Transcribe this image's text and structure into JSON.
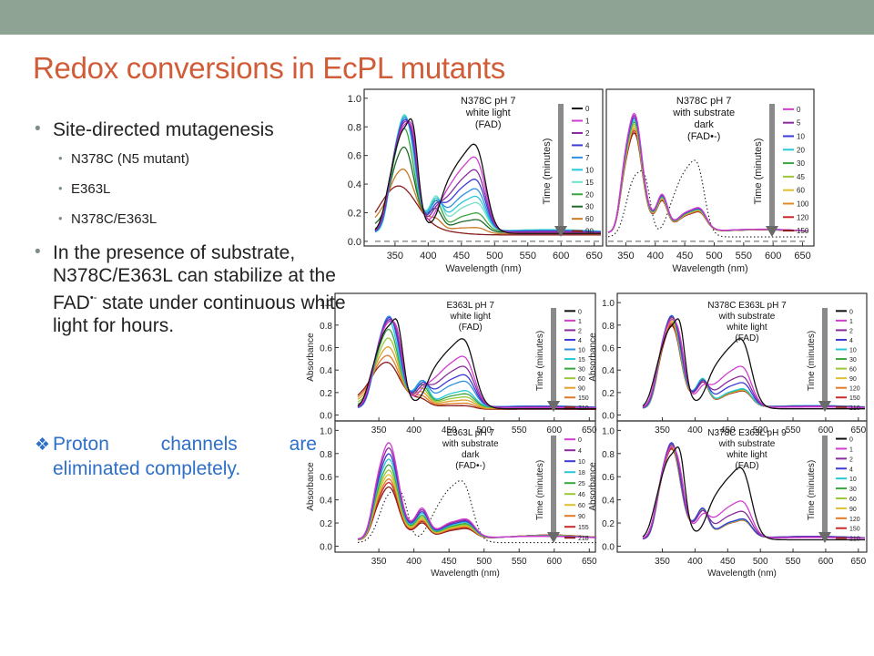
{
  "slide": {
    "title": "Redox conversions in EcPL mutants",
    "bullets": [
      {
        "text": "Site-directed mutagenesis"
      },
      {
        "text": "N378C (N5 mutant)"
      },
      {
        "text": "E363L"
      },
      {
        "text": "N378C/E363L"
      },
      {
        "text_before": "In the presence of substrate, N378C/E363L can stabilize at the FAD",
        "superscript": "•-",
        "text_after": " state under continuous white light for hours."
      }
    ],
    "highlight": {
      "line1": "Proton channels are",
      "line2": "eliminated completely."
    },
    "colors": {
      "title": "#d05c38",
      "highlight": "#2e6fc8",
      "topbar": "#8fa394"
    }
  },
  "chart_data": [
    {
      "type": "line",
      "title_lines": [
        "N378C pH 7",
        "white light",
        "(FAD)"
      ],
      "xlabel": "Wavelength (nm)",
      "ylabel": "",
      "xlim": [
        320,
        660
      ],
      "ylim": [
        -0.02,
        1.05
      ],
      "xticks": [
        350,
        400,
        450,
        500,
        550,
        600,
        650
      ],
      "yticks": [
        0.0,
        0.2,
        0.4,
        0.6,
        0.8,
        1.0
      ],
      "legend_title": "Time (minutes)",
      "legend": [
        "0",
        "1",
        "2",
        "4",
        "7",
        "10",
        "15",
        "20",
        "30",
        "60",
        "90"
      ],
      "colors": [
        "#111111",
        "#d03ed0",
        "#8a2c9e",
        "#3b3bd6",
        "#2f8fe0",
        "#28c8d8",
        "#6ee0c8",
        "#3aa640",
        "#1e6a2a",
        "#c87a28",
        "#8a1c1c"
      ],
      "series": [
        {
          "name": "0",
          "kind": "fad",
          "k": 0
        },
        {
          "name": "1",
          "kind": "toward_sq",
          "k": 0.2
        },
        {
          "name": "2",
          "kind": "toward_sq",
          "k": 0.4
        },
        {
          "name": "4",
          "kind": "toward_sq",
          "k": 0.55
        },
        {
          "name": "7",
          "kind": "toward_sq",
          "k": 0.7
        },
        {
          "name": "10",
          "kind": "toward_sq",
          "k": 0.82
        },
        {
          "name": "15",
          "kind": "toward_sq",
          "k": 0.92
        },
        {
          "name": "20",
          "kind": "to_hq",
          "k": 0.2
        },
        {
          "name": "30",
          "kind": "to_hq",
          "k": 0.45
        },
        {
          "name": "60",
          "kind": "to_hq",
          "k": 0.75
        },
        {
          "name": "90",
          "kind": "to_hq",
          "k": 1.0
        }
      ],
      "dashed_baseline": true,
      "dotted_ref": false
    },
    {
      "type": "line",
      "title_lines": [
        "N378C pH 7",
        "with substrate",
        "dark",
        "(FAD•-)"
      ],
      "xlabel": "Wavelength (nm)",
      "ylabel": "",
      "xlim": [
        320,
        660
      ],
      "ylim": [
        -0.02,
        1.05
      ],
      "xticks": [
        350,
        400,
        450,
        500,
        550,
        600,
        650
      ],
      "yticks": [],
      "legend_title": "Time (minutes)",
      "legend": [
        "0",
        "5",
        "10",
        "20",
        "30",
        "45",
        "60",
        "100",
        "120",
        "150"
      ],
      "colors": [
        "#d03ed0",
        "#8a2c9e",
        "#3b3bd6",
        "#28c8d8",
        "#3aa640",
        "#9ac83a",
        "#e0c030",
        "#e08a28",
        "#c82a2a",
        "#8a1c1c"
      ],
      "series": [
        {
          "name": "0",
          "kind": "sq",
          "k": 0
        },
        {
          "name": "5",
          "kind": "sq",
          "k": 0.1
        },
        {
          "name": "10",
          "kind": "sq",
          "k": 0.2
        },
        {
          "name": "20",
          "kind": "sq",
          "k": 0.3
        },
        {
          "name": "30",
          "kind": "sq",
          "k": 0.4
        },
        {
          "name": "45",
          "kind": "sq",
          "k": 0.5
        },
        {
          "name": "60",
          "kind": "sq",
          "k": 0.6
        },
        {
          "name": "100",
          "kind": "sq",
          "k": 0.7
        },
        {
          "name": "120",
          "kind": "sq",
          "k": 0.8
        },
        {
          "name": "150",
          "kind": "sq",
          "k": 0.9
        }
      ],
      "dashed_baseline": true,
      "dotted_ref": true
    },
    {
      "type": "line",
      "title_lines": [
        "E363L pH 7",
        "white light",
        "(FAD)"
      ],
      "xlabel": "",
      "ylabel": "Absorbance",
      "xlim": [
        320,
        660
      ],
      "ylim": [
        -0.02,
        1.05
      ],
      "xticks": [
        350,
        400,
        450,
        500,
        550,
        600,
        650
      ],
      "yticks": [
        0.0,
        0.2,
        0.4,
        0.6,
        0.8,
        1.0
      ],
      "legend_title": "Time (minutes)",
      "legend": [
        "0",
        "1",
        "2",
        "4",
        "10",
        "15",
        "30",
        "60",
        "90",
        "150",
        "210"
      ],
      "colors": [
        "#111111",
        "#d03ed0",
        "#8a2c9e",
        "#3b3bd6",
        "#2f8fe0",
        "#28c8d8",
        "#3aa640",
        "#9ac83a",
        "#e0a030",
        "#e07a28",
        "#8a1c1c"
      ],
      "series": [
        {
          "name": "0",
          "kind": "fad",
          "k": 0
        },
        {
          "name": "1",
          "kind": "toward_sq",
          "k": 0.35
        },
        {
          "name": "2",
          "kind": "toward_sq",
          "k": 0.55
        },
        {
          "name": "4",
          "kind": "toward_sq",
          "k": 0.72
        },
        {
          "name": "10",
          "kind": "toward_sq",
          "k": 0.85
        },
        {
          "name": "15",
          "kind": "to_hq",
          "k": 0.1
        },
        {
          "name": "30",
          "kind": "to_hq",
          "k": 0.25
        },
        {
          "name": "60",
          "kind": "to_hq",
          "k": 0.4
        },
        {
          "name": "90",
          "kind": "to_hq",
          "k": 0.55
        },
        {
          "name": "150",
          "kind": "to_hq",
          "k": 0.7
        },
        {
          "name": "210",
          "kind": "to_hq",
          "k": 0.82
        }
      ],
      "dashed_baseline": false,
      "dotted_ref": false
    },
    {
      "type": "line",
      "title_lines": [
        "N378C E363L pH 7",
        "with substrate",
        "white light",
        "(FAD)"
      ],
      "xlabel": "",
      "ylabel": "Absorbance",
      "xlim": [
        320,
        660
      ],
      "ylim": [
        -0.02,
        1.05
      ],
      "xticks": [
        350,
        400,
        450,
        500,
        550,
        600,
        650
      ],
      "yticks": [
        0.0,
        0.2,
        0.4,
        0.6,
        0.8,
        1.0
      ],
      "legend_title": "Time (minutes)",
      "legend": [
        "0",
        "1",
        "2",
        "4",
        "10",
        "30",
        "60",
        "90",
        "120",
        "150",
        "210"
      ],
      "colors": [
        "#111111",
        "#d03ed0",
        "#8a2c9e",
        "#3b3bd6",
        "#28c8d8",
        "#3aa640",
        "#9ac83a",
        "#e0c030",
        "#e07a28",
        "#c82a2a",
        "#8a1c1c"
      ],
      "series": [
        {
          "name": "0",
          "kind": "fad",
          "k": 0
        },
        {
          "name": "1",
          "kind": "toward_sq",
          "k": 0.55
        },
        {
          "name": "2",
          "kind": "toward_sq",
          "k": 0.75
        },
        {
          "name": "4",
          "kind": "toward_sq",
          "k": 0.88
        },
        {
          "name": "10",
          "kind": "sq",
          "k": 0.05
        },
        {
          "name": "30",
          "kind": "sq",
          "k": 0.15
        },
        {
          "name": "60",
          "kind": "sq",
          "k": 0.25
        },
        {
          "name": "90",
          "kind": "sq",
          "k": 0.35
        },
        {
          "name": "120",
          "kind": "sq",
          "k": 0.45
        },
        {
          "name": "150",
          "kind": "sq",
          "k": 0.55
        },
        {
          "name": "210",
          "kind": "sq",
          "k": 0.65
        }
      ],
      "dashed_baseline": false,
      "dotted_ref": false
    },
    {
      "type": "line",
      "title_lines": [
        "E363L pH 7",
        "with substrate",
        "dark",
        "(FAD•-)"
      ],
      "xlabel": "Wavelength (nm)",
      "ylabel": "Absorbance",
      "xlim": [
        320,
        660
      ],
      "ylim": [
        -0.02,
        1.05
      ],
      "xticks": [
        350,
        400,
        450,
        500,
        550,
        600,
        650
      ],
      "yticks": [
        0.0,
        0.2,
        0.4,
        0.6,
        0.8,
        1.0
      ],
      "legend_title": "Time (minutes)",
      "legend": [
        "0",
        "4",
        "10",
        "18",
        "25",
        "46",
        "60",
        "90",
        "155",
        "218"
      ],
      "colors": [
        "#d03ed0",
        "#8a2c9e",
        "#3b3bd6",
        "#28c8d8",
        "#3aa640",
        "#9ac83a",
        "#e0c030",
        "#e07a28",
        "#c82a2a",
        "#8a1c1c"
      ],
      "series": [
        {
          "name": "0",
          "kind": "sq_decay",
          "k": 0
        },
        {
          "name": "4",
          "kind": "sq_decay",
          "k": 0.12
        },
        {
          "name": "10",
          "kind": "sq_decay",
          "k": 0.25
        },
        {
          "name": "18",
          "kind": "sq_decay",
          "k": 0.37
        },
        {
          "name": "25",
          "kind": "sq_decay",
          "k": 0.5
        },
        {
          "name": "46",
          "kind": "sq_decay",
          "k": 0.62
        },
        {
          "name": "60",
          "kind": "sq_decay",
          "k": 0.72
        },
        {
          "name": "90",
          "kind": "sq_decay",
          "k": 0.82
        },
        {
          "name": "155",
          "kind": "sq_decay",
          "k": 0.9
        },
        {
          "name": "218",
          "kind": "sq_decay",
          "k": 1.0
        }
      ],
      "dashed_baseline": false,
      "dotted_ref": true
    },
    {
      "type": "line",
      "title_lines": [
        "N378C E363L pH 9",
        "with substrate",
        "white light",
        "(FAD)"
      ],
      "xlabel": "Wavelength (nm)",
      "ylabel": "Absorbance",
      "xlim": [
        320,
        660
      ],
      "ylim": [
        -0.02,
        1.05
      ],
      "xticks": [
        350,
        400,
        450,
        500,
        550,
        600,
        650
      ],
      "yticks": [
        0.0,
        0.2,
        0.4,
        0.6,
        0.8,
        1.0
      ],
      "legend_title": "Time (minutes)",
      "legend": [
        "0",
        "1",
        "2",
        "4",
        "10",
        "30",
        "60",
        "90",
        "120",
        "150",
        "210"
      ],
      "colors": [
        "#111111",
        "#d03ed0",
        "#8a2c9e",
        "#3b3bd6",
        "#28c8d8",
        "#3aa640",
        "#9ac83a",
        "#e0c030",
        "#e07a28",
        "#c82a2a",
        "#8a1c1c"
      ],
      "series": [
        {
          "name": "0",
          "kind": "fad",
          "k": 0
        },
        {
          "name": "1",
          "kind": "toward_sq",
          "k": 0.65
        },
        {
          "name": "2",
          "kind": "toward_sq",
          "k": 0.85
        },
        {
          "name": "4",
          "kind": "sq",
          "k": 0.0
        },
        {
          "name": "10",
          "kind": "sq",
          "k": 0.05
        },
        {
          "name": "30",
          "kind": "sq",
          "k": 0.1
        },
        {
          "name": "60",
          "kind": "sq",
          "k": 0.15
        },
        {
          "name": "90",
          "kind": "sq",
          "k": 0.2
        },
        {
          "name": "120",
          "kind": "sq",
          "k": 0.25
        },
        {
          "name": "150",
          "kind": "sq",
          "k": 0.3
        },
        {
          "name": "210",
          "kind": "sq",
          "k": 0.35
        }
      ],
      "dashed_baseline": false,
      "dotted_ref": false
    }
  ]
}
